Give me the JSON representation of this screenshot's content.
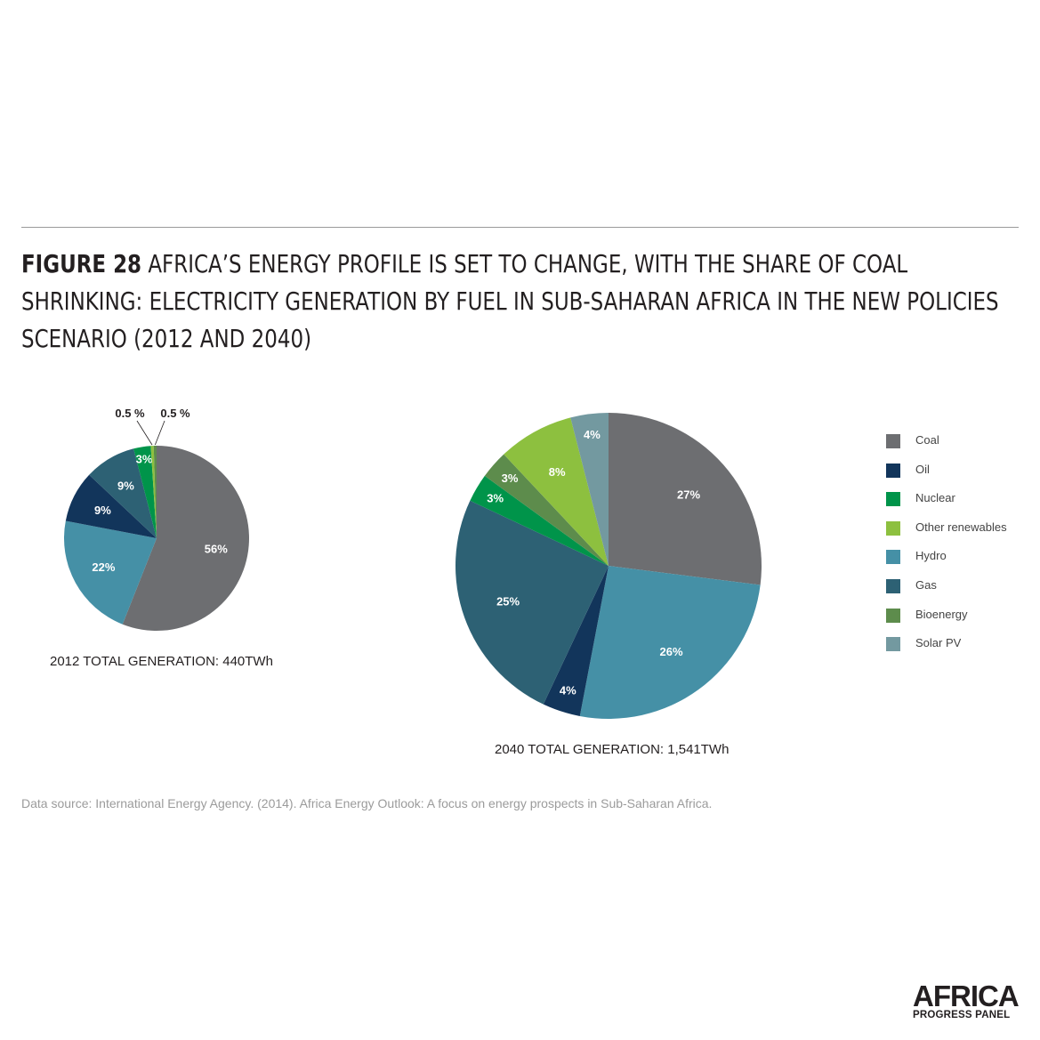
{
  "title": {
    "figure": "FIGURE 28",
    "text": "AFRICA’S ENERGY PROFILE IS SET TO CHANGE, WITH THE SHARE OF COAL SHRINKING: ELECTRICITY GENERATION BY FUEL IN SUB-SAHARAN AFRICA IN THE NEW POLICIES SCENARIO (2012 AND 2040)"
  },
  "source": "Data source: International Energy Agency. (2014). Africa Energy Outlook: A focus on energy prospects in Sub-Saharan Africa.",
  "logo": {
    "main": "AFRICA",
    "sub": "PROGRESS PANEL"
  },
  "legend": [
    {
      "label": "Coal",
      "color": "#6d6e71"
    },
    {
      "label": "Oil",
      "color": "#12355b"
    },
    {
      "label": "Nuclear",
      "color": "#00944a"
    },
    {
      "label": "Other renewables",
      "color": "#8dc03f"
    },
    {
      "label": "Hydro",
      "color": "#4590a6"
    },
    {
      "label": "Gas",
      "color": "#2d6174"
    },
    {
      "label": "Bioenergy",
      "color": "#5d8c4c"
    },
    {
      "label": "Solar PV",
      "color": "#7399a0"
    }
  ],
  "chart_data": [
    {
      "type": "pie",
      "title": "2012 TOTAL GENERATION: 440TWh",
      "slices": [
        {
          "name": "Coal",
          "value": 56,
          "label": "56%",
          "color": "#6d6e71"
        },
        {
          "name": "Hydro",
          "value": 22,
          "label": "22%",
          "color": "#4590a6"
        },
        {
          "name": "Oil",
          "value": 9,
          "label": "9%",
          "color": "#12355b"
        },
        {
          "name": "Gas",
          "value": 9,
          "label": "9%",
          "color": "#2d6174"
        },
        {
          "name": "Nuclear",
          "value": 3,
          "label": "3%",
          "color": "#00944a"
        },
        {
          "name": "Other renewables",
          "value": 0.5,
          "label": "0.5 %",
          "color": "#8dc03f"
        },
        {
          "name": "Bioenergy",
          "value": 0.5,
          "label": "0.5 %",
          "color": "#5d8c4c"
        }
      ]
    },
    {
      "type": "pie",
      "title": "2040 TOTAL GENERATION: 1,541TWh",
      "slices": [
        {
          "name": "Coal",
          "value": 27,
          "label": "27%",
          "color": "#6d6e71"
        },
        {
          "name": "Hydro",
          "value": 26,
          "label": "26%",
          "color": "#4590a6"
        },
        {
          "name": "Oil",
          "value": 4,
          "label": "4%",
          "color": "#12355b"
        },
        {
          "name": "Gas",
          "value": 25,
          "label": "25%",
          "color": "#2d6174"
        },
        {
          "name": "Nuclear",
          "value": 3,
          "label": "3%",
          "color": "#00944a"
        },
        {
          "name": "Bioenergy",
          "value": 3,
          "label": "3%",
          "color": "#5d8c4c"
        },
        {
          "name": "Other renewables",
          "value": 8,
          "label": "8%",
          "color": "#8dc03f"
        },
        {
          "name": "Solar PV",
          "value": 4,
          "label": "4%",
          "color": "#7399a0"
        }
      ]
    }
  ]
}
